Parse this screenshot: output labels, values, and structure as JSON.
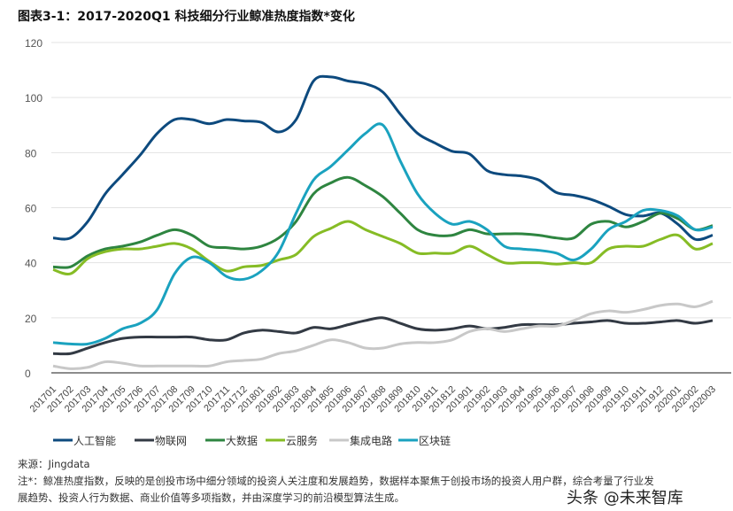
{
  "chart_data": {
    "type": "line",
    "title": "图表3-1：2017-2020Q1 科技细分行业鲸准热度指数*变化",
    "xlabel": "",
    "ylabel": "",
    "ylim": [
      0,
      120
    ],
    "yticks": [
      "0",
      "20",
      "40",
      "60",
      "80",
      "100",
      "120"
    ],
    "grid": true,
    "legend": "bottom",
    "categories": [
      "201701",
      "201702",
      "201703",
      "201704",
      "201705",
      "201706",
      "201707",
      "201708",
      "201709",
      "201710",
      "201711",
      "201712",
      "201801",
      "201802",
      "201803",
      "201804",
      "201805",
      "201806",
      "201807",
      "201808",
      "201809",
      "201810",
      "201811",
      "201812",
      "201901",
      "201902",
      "201903",
      "201904",
      "201905",
      "201906",
      "201907",
      "201908",
      "201909",
      "201910",
      "201911",
      "201912",
      "202001",
      "202002",
      "202003"
    ],
    "series": [
      {
        "name": "人工智能",
        "color": "#0d4a7e",
        "values": [
          49,
          49,
          55,
          65,
          72,
          79,
          87,
          92,
          92,
          90.5,
          92,
          91.5,
          91,
          87.5,
          92,
          106,
          107.5,
          106,
          105,
          102,
          94,
          87,
          83.5,
          80.5,
          79.5,
          73.5,
          72,
          71.5,
          70,
          65.5,
          64.5,
          63,
          60.5,
          57.5,
          57,
          58,
          54,
          48.5,
          50
        ]
      },
      {
        "name": "物联网",
        "color": "#333a44",
        "values": [
          7,
          7,
          9,
          11,
          12.5,
          13,
          13,
          13,
          13,
          12,
          12,
          14.5,
          15.5,
          15,
          14.5,
          16.5,
          16,
          17.5,
          19,
          20,
          18,
          16,
          15.5,
          16,
          17,
          16,
          16.5,
          17.5,
          17.5,
          17.5,
          18,
          18.5,
          19,
          18,
          18,
          18.5,
          19,
          18,
          19
        ]
      },
      {
        "name": "大数据",
        "color": "#2e8540",
        "values": [
          38.5,
          38.5,
          42.5,
          45,
          46,
          47.5,
          50,
          52,
          50,
          46,
          45.5,
          45,
          46,
          49,
          55,
          65,
          69,
          71,
          68,
          64,
          58,
          52,
          50,
          50,
          52,
          50.5,
          50.5,
          50.5,
          50,
          49,
          49,
          54,
          55,
          53,
          55,
          58,
          56,
          52,
          53.5
        ]
      },
      {
        "name": "云服务",
        "color": "#86bc25",
        "values": [
          37.5,
          36,
          41.5,
          44,
          45,
          45,
          46,
          47,
          45,
          40.5,
          37,
          38.5,
          39,
          41,
          43,
          49.5,
          52.5,
          55,
          52,
          49.5,
          47,
          43.5,
          43.5,
          43.5,
          46,
          43,
          40,
          40,
          40,
          39.5,
          40,
          40,
          45,
          46,
          46,
          48.5,
          50,
          45,
          47
        ]
      },
      {
        "name": "集成电路",
        "color": "#c8c8c8",
        "values": [
          2.5,
          1.5,
          2,
          4,
          3.5,
          2.5,
          2.5,
          2.5,
          2.5,
          2.5,
          4,
          4.5,
          5,
          7,
          8,
          10,
          12,
          11,
          9,
          9,
          10.5,
          11,
          11,
          12,
          15,
          16,
          15,
          16,
          17,
          17,
          19,
          21.5,
          22.5,
          22,
          23,
          24.5,
          25,
          24,
          26
        ]
      },
      {
        "name": "区块链",
        "color": "#1aa2bf",
        "values": [
          11,
          10.5,
          10.5,
          12.5,
          16,
          18,
          23,
          36,
          42,
          40,
          35,
          34,
          37,
          44,
          58,
          70,
          75,
          81,
          87,
          90,
          77,
          65,
          58,
          54,
          55,
          52,
          46,
          45,
          44.5,
          43.5,
          41,
          45,
          52,
          55,
          59,
          59,
          57,
          52,
          53
        ]
      }
    ]
  },
  "footer": {
    "source": "来源：Jingdata",
    "note_line1": "注*：鲸准热度指数，反映的是创投市场中细分领域的投资人关注度和发展趋势，数据样本聚焦于创投市场的投资人用户群，综合考量了行业发",
    "note_line2": "展趋势、投资人行为数据、商业价值等多项指数，并由深度学习的前沿模型算法生成。",
    "watermark": "头条 @未来智库"
  }
}
